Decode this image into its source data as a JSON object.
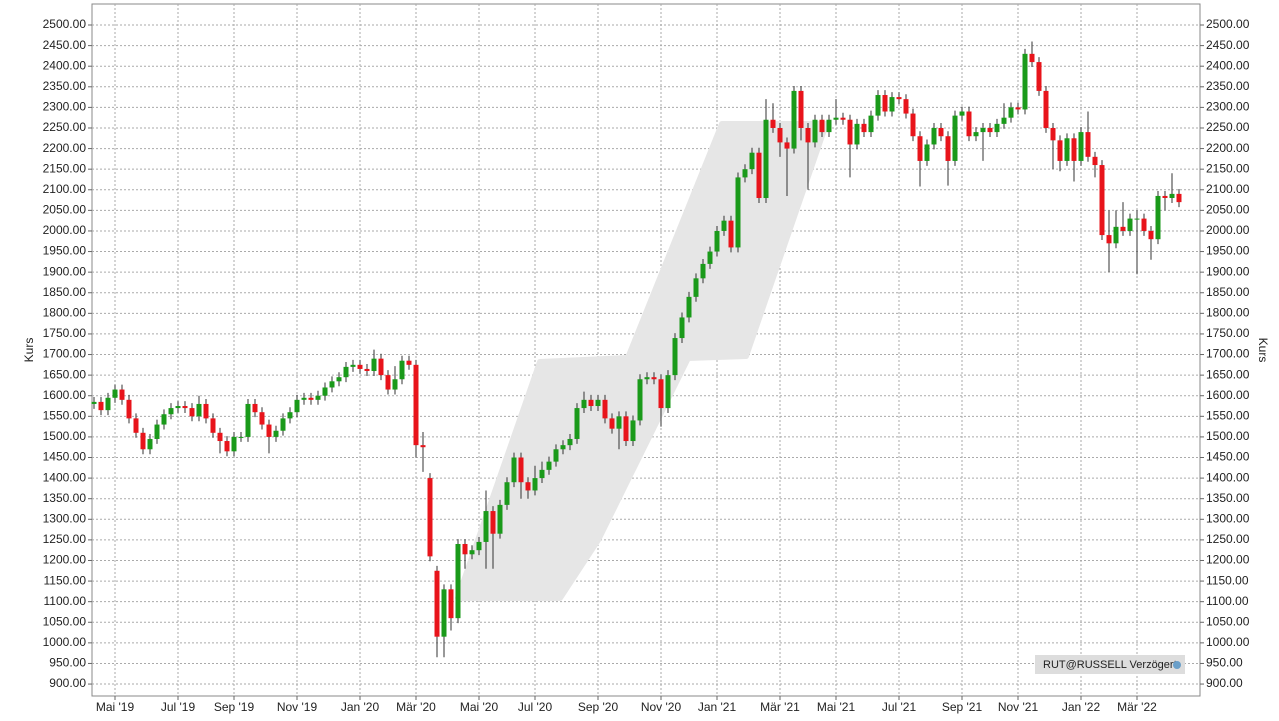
{
  "chart_data": {
    "type": "candlestick",
    "y_label": "Kurs",
    "source_label": "RUT@RUSSELL Verzögert",
    "up_color": "#1a9a1a",
    "down_color": "#e8141b",
    "grid": true,
    "ylim": [
      871,
      2551
    ],
    "yticks": [
      {
        "value": 900,
        "label": "900.00"
      },
      {
        "value": 950,
        "label": "950.00"
      },
      {
        "value": 1000,
        "label": "1000.00"
      },
      {
        "value": 1050,
        "label": "1050.00"
      },
      {
        "value": 1100,
        "label": "1100.00"
      },
      {
        "value": 1150,
        "label": "1150.00"
      },
      {
        "value": 1200,
        "label": "1200.00"
      },
      {
        "value": 1250,
        "label": "1250.00"
      },
      {
        "value": 1300,
        "label": "1300.00"
      },
      {
        "value": 1350,
        "label": "1350.00"
      },
      {
        "value": 1400,
        "label": "1400.00"
      },
      {
        "value": 1450,
        "label": "1450.00"
      },
      {
        "value": 1500,
        "label": "1500.00"
      },
      {
        "value": 1550,
        "label": "1550.00"
      },
      {
        "value": 1600,
        "label": "1600.00"
      },
      {
        "value": 1650,
        "label": "1650.00"
      },
      {
        "value": 1700,
        "label": "1700.00"
      },
      {
        "value": 1750,
        "label": "1750.00"
      },
      {
        "value": 1800,
        "label": "1800.00"
      },
      {
        "value": 1850,
        "label": "1850.00"
      },
      {
        "value": 1900,
        "label": "1900.00"
      },
      {
        "value": 1950,
        "label": "1950.00"
      },
      {
        "value": 2000,
        "label": "2000.00"
      },
      {
        "value": 2050,
        "label": "2050.00"
      },
      {
        "value": 2100,
        "label": "2100.00"
      },
      {
        "value": 2150,
        "label": "2150.00"
      },
      {
        "value": 2200,
        "label": "2200.00"
      },
      {
        "value": 2250,
        "label": "2250.00"
      },
      {
        "value": 2300,
        "label": "2300.00"
      },
      {
        "value": 2350,
        "label": "2350.00"
      },
      {
        "value": 2400,
        "label": "2400.00"
      },
      {
        "value": 2450,
        "label": "2450.00"
      },
      {
        "value": 2500,
        "label": "2500.00"
      }
    ],
    "categories": [
      null,
      null,
      null,
      "Mai '19",
      null,
      null,
      null,
      null,
      null,
      null,
      null,
      null,
      "Jul '19",
      null,
      null,
      null,
      null,
      null,
      null,
      null,
      "Sep '19",
      null,
      null,
      null,
      null,
      null,
      null,
      null,
      null,
      "Nov '19",
      null,
      null,
      null,
      null,
      null,
      null,
      null,
      null,
      "Jan '20",
      null,
      null,
      null,
      null,
      null,
      null,
      null,
      "Mär '20",
      null,
      null,
      null,
      null,
      null,
      null,
      null,
      null,
      "Mai '20",
      null,
      null,
      null,
      null,
      null,
      null,
      null,
      "Jul '20",
      null,
      null,
      null,
      null,
      null,
      null,
      null,
      null,
      "Sep '20",
      null,
      null,
      null,
      null,
      null,
      null,
      null,
      null,
      "Nov '20",
      null,
      null,
      null,
      null,
      null,
      null,
      null,
      "Jan '21",
      null,
      null,
      null,
      null,
      null,
      null,
      null,
      null,
      "Mär '21",
      null,
      null,
      null,
      null,
      null,
      null,
      null,
      "Mai '21",
      null,
      null,
      null,
      null,
      null,
      null,
      null,
      null,
      "Jul '21",
      null,
      null,
      null,
      null,
      null,
      null,
      null,
      null,
      "Sep '21",
      null,
      null,
      null,
      null,
      null,
      null,
      null,
      "Nov '21",
      null,
      null,
      null,
      null,
      null,
      null,
      null,
      null,
      "Jan '22",
      null,
      null,
      null,
      null,
      null,
      null,
      null,
      "Mär '22",
      null,
      null,
      null,
      null,
      null,
      null
    ],
    "open": [
      1580,
      1585,
      1565,
      1595,
      1615,
      1590,
      1545,
      1510,
      1470,
      1495,
      1530,
      1555,
      1570,
      1575,
      1570,
      1550,
      1580,
      1545,
      1510,
      1490,
      1465,
      1500,
      1500,
      1580,
      1560,
      1530,
      1500,
      1515,
      1545,
      1560,
      1590,
      1595,
      1590,
      1600,
      1620,
      1635,
      1645,
      1670,
      1675,
      1665,
      1660,
      1690,
      1650,
      1615,
      1640,
      1685,
      1675,
      1480,
      1400,
      1175,
      1015,
      1130,
      1060,
      1240,
      1215,
      1225,
      1245,
      1320,
      1265,
      1335,
      1390,
      1450,
      1390,
      1370,
      1400,
      1420,
      1440,
      1470,
      1480,
      1495,
      1570,
      1590,
      1575,
      1590,
      1545,
      1520,
      1550,
      1490,
      1540,
      1640,
      1645,
      1640,
      1570,
      1650,
      1740,
      1790,
      1840,
      1885,
      1920,
      1950,
      2000,
      2025,
      1960,
      2130,
      2150,
      2190,
      2080,
      2270,
      2250,
      2215,
      2200,
      2340,
      2250,
      2215,
      2270,
      2240,
      2270,
      2275,
      2270,
      2210,
      2260,
      2240,
      2280,
      2330,
      2290,
      2325,
      2320,
      2285,
      2230,
      2170,
      2210,
      2250,
      2230,
      2170,
      2280,
      2290,
      2230,
      2240,
      2250,
      2240,
      2260,
      2275,
      2300,
      2295,
      2430,
      2410,
      2340,
      2250,
      2220,
      2170,
      2225,
      2170,
      2240,
      2180,
      2160,
      1990,
      1970,
      2010,
      2000,
      2030,
      2030,
      2000,
      1980,
      2085,
      2080,
      2090
    ],
    "high": [
      1597,
      1597,
      1607,
      1627,
      1627,
      1602,
      1557,
      1522,
      1507,
      1542,
      1567,
      1582,
      1587,
      1587,
      1582,
      1600,
      1592,
      1557,
      1522,
      1502,
      1512,
      1512,
      1592,
      1592,
      1572,
      1542,
      1527,
      1557,
      1572,
      1602,
      1607,
      1607,
      1612,
      1632,
      1647,
      1657,
      1682,
      1687,
      1687,
      1677,
      1712,
      1702,
      1662,
      1672,
      1697,
      1697,
      1687,
      1512,
      1412,
      1187,
      1142,
      1142,
      1252,
      1252,
      1237,
      1257,
      1370,
      1332,
      1347,
      1402,
      1462,
      1462,
      1402,
      1430,
      1440,
      1452,
      1482,
      1492,
      1507,
      1582,
      1610,
      1602,
      1602,
      1602,
      1557,
      1562,
      1562,
      1552,
      1652,
      1657,
      1657,
      1652,
      1662,
      1752,
      1802,
      1852,
      1897,
      1932,
      1962,
      2012,
      2037,
      2037,
      2142,
      2162,
      2202,
      2202,
      2320,
      2310,
      2262,
      2227,
      2352,
      2352,
      2262,
      2282,
      2282,
      2282,
      2320,
      2287,
      2282,
      2272,
      2272,
      2292,
      2342,
      2342,
      2337,
      2337,
      2332,
      2297,
      2242,
      2222,
      2262,
      2262,
      2242,
      2292,
      2302,
      2302,
      2252,
      2262,
      2262,
      2272,
      2310,
      2312,
      2312,
      2442,
      2460,
      2422,
      2352,
      2262,
      2232,
      2237,
      2237,
      2252,
      2290,
      2192,
      2172,
      2050,
      2050,
      2070,
      2042,
      2050,
      2042,
      2012,
      2097,
      2097,
      2140,
      2102
    ],
    "low": [
      1568,
      1553,
      1553,
      1583,
      1578,
      1533,
      1498,
      1458,
      1458,
      1483,
      1518,
      1543,
      1558,
      1558,
      1538,
      1538,
      1533,
      1498,
      1460,
      1453,
      1453,
      1488,
      1488,
      1548,
      1518,
      1460,
      1488,
      1503,
      1533,
      1548,
      1578,
      1578,
      1578,
      1588,
      1608,
      1623,
      1633,
      1658,
      1653,
      1648,
      1648,
      1638,
      1603,
      1603,
      1628,
      1663,
      1450,
      1415,
      1198,
      965,
      965,
      1030,
      1048,
      1180,
      1203,
      1213,
      1180,
      1180,
      1253,
      1323,
      1378,
      1350,
      1350,
      1358,
      1388,
      1408,
      1428,
      1458,
      1468,
      1483,
      1558,
      1563,
      1563,
      1533,
      1508,
      1470,
      1478,
      1478,
      1528,
      1628,
      1628,
      1525,
      1558,
      1638,
      1728,
      1778,
      1828,
      1873,
      1908,
      1938,
      1988,
      1948,
      1948,
      2118,
      2138,
      2068,
      2068,
      2238,
      2180,
      2085,
      2188,
      2220,
      2100,
      2203,
      2228,
      2228,
      2258,
      2258,
      2130,
      2198,
      2228,
      2228,
      2268,
      2278,
      2278,
      2308,
      2273,
      2218,
      2108,
      2158,
      2198,
      2218,
      2110,
      2158,
      2268,
      2218,
      2218,
      2170,
      2228,
      2228,
      2248,
      2263,
      2283,
      2283,
      2398,
      2328,
      2238,
      2150,
      2145,
      2158,
      2120,
      2158,
      2168,
      2130,
      1978,
      1900,
      1958,
      1988,
      1988,
      1895,
      1988,
      1930,
      1968,
      2050,
      2068,
      2058
    ],
    "close": [
      1585,
      1565,
      1595,
      1615,
      1590,
      1545,
      1510,
      1470,
      1495,
      1530,
      1555,
      1570,
      1575,
      1570,
      1550,
      1580,
      1545,
      1510,
      1490,
      1465,
      1500,
      1500,
      1580,
      1560,
      1530,
      1500,
      1515,
      1545,
      1560,
      1590,
      1595,
      1590,
      1600,
      1620,
      1635,
      1645,
      1670,
      1675,
      1665,
      1660,
      1690,
      1650,
      1615,
      1640,
      1685,
      1675,
      1480,
      1475,
      1210,
      1015,
      1130,
      1060,
      1240,
      1215,
      1225,
      1245,
      1320,
      1265,
      1335,
      1390,
      1450,
      1390,
      1370,
      1400,
      1420,
      1440,
      1470,
      1480,
      1495,
      1570,
      1590,
      1575,
      1590,
      1545,
      1520,
      1550,
      1490,
      1540,
      1640,
      1645,
      1640,
      1570,
      1650,
      1740,
      1790,
      1840,
      1885,
      1920,
      1950,
      2000,
      2025,
      1960,
      2130,
      2150,
      2190,
      2080,
      2270,
      2250,
      2215,
      2200,
      2340,
      2250,
      2215,
      2270,
      2240,
      2270,
      2275,
      2270,
      2210,
      2260,
      2240,
      2280,
      2330,
      2290,
      2325,
      2320,
      2285,
      2230,
      2170,
      2210,
      2250,
      2230,
      2170,
      2280,
      2290,
      2230,
      2240,
      2250,
      2240,
      2260,
      2275,
      2300,
      2295,
      2430,
      2410,
      2340,
      2250,
      2220,
      2170,
      2225,
      2170,
      2240,
      2180,
      2160,
      1990,
      1970,
      2010,
      2000,
      2030,
      2030,
      2000,
      1980,
      2085,
      2080,
      2090,
      2070
    ]
  }
}
